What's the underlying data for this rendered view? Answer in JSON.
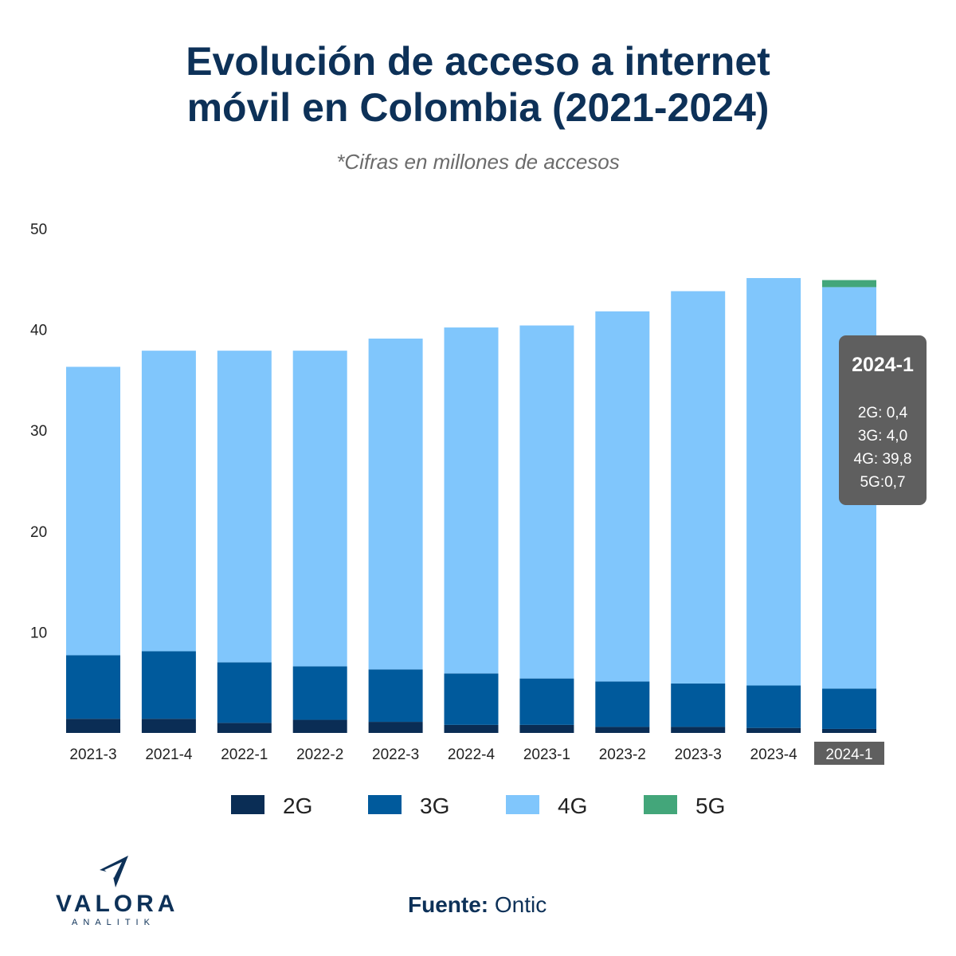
{
  "title_line1": "Evolución de acceso a internet",
  "title_line2": "móvil en Colombia (2021-2024)",
  "subtitle": "*Cifras en millones de accesos",
  "chart_data": {
    "type": "bar",
    "stacked": true,
    "categories": [
      "2021-3",
      "2021-4",
      "2022-1",
      "2022-2",
      "2022-3",
      "2022-4",
      "2023-1",
      "2023-2",
      "2023-3",
      "2023-4",
      "2024-1"
    ],
    "series": [
      {
        "name": "2G",
        "color": "#0a2d55",
        "values": [
          1.4,
          1.4,
          1.0,
          1.3,
          1.1,
          0.8,
          0.8,
          0.6,
          0.6,
          0.5,
          0.4
        ]
      },
      {
        "name": "3G",
        "color": "#005a9c",
        "values": [
          6.3,
          6.7,
          6.0,
          5.3,
          5.2,
          5.1,
          4.6,
          4.5,
          4.3,
          4.2,
          4.0
        ]
      },
      {
        "name": "4G",
        "color": "#80c6fc",
        "values": [
          28.6,
          29.8,
          30.9,
          31.3,
          32.8,
          34.3,
          35.0,
          36.7,
          38.9,
          40.4,
          39.8
        ]
      },
      {
        "name": "5G",
        "color": "#43a67a",
        "values": [
          0,
          0,
          0,
          0,
          0,
          0,
          0,
          0,
          0,
          0,
          0.7
        ]
      }
    ],
    "ylim": [
      0,
      50
    ],
    "yticks": [
      "10",
      "20",
      "30",
      "40",
      "50"
    ],
    "legend_position": "bottom",
    "grid": false,
    "highlighted_category": "2024-1",
    "tooltip": {
      "title": "2024-1",
      "lines": [
        "2G: 0,4",
        "3G: 4,0",
        "4G: 39,8",
        "5G:0,7"
      ]
    }
  },
  "source_label": "Fuente:",
  "source_value": "Ontic",
  "logo": {
    "name": "VALORA",
    "sub": "ANALITIK"
  }
}
